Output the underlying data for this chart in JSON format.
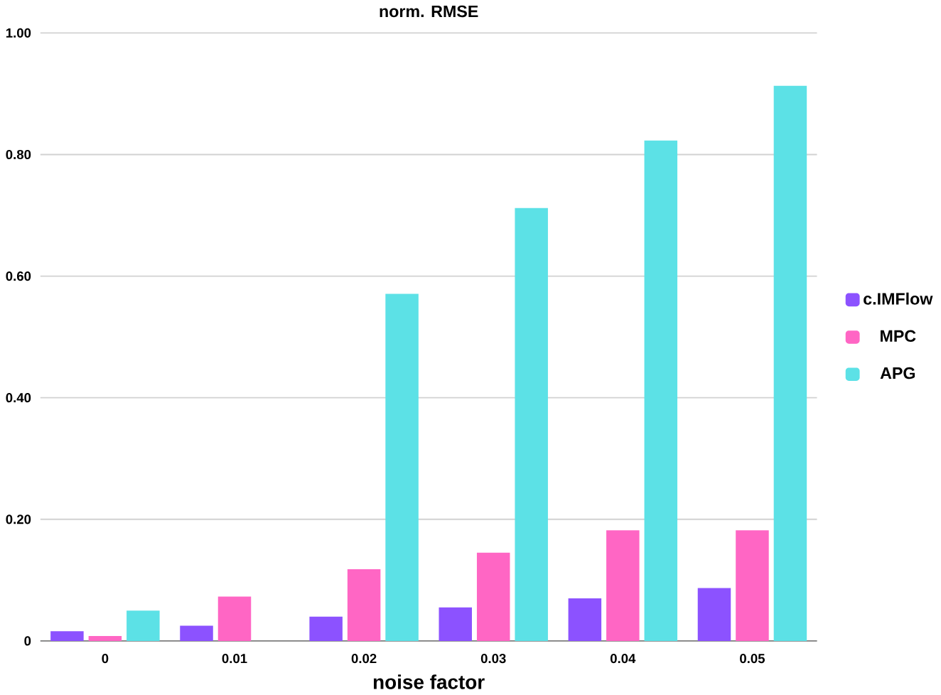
{
  "chart_data": {
    "type": "bar",
    "title": "norm. RMSE",
    "xlabel": "noise factor",
    "categories": [
      "0",
      "0.01",
      "0.02",
      "0.03",
      "0.04",
      "0.05"
    ],
    "series": [
      {
        "name": "c.IMFlow",
        "color": "#8c52ff",
        "values": [
          0.016,
          0.025,
          0.04,
          0.055,
          0.07,
          0.087
        ]
      },
      {
        "name": "MPC",
        "color": "#ff66c4",
        "values": [
          0.008,
          0.073,
          0.118,
          0.145,
          0.182,
          0.182
        ]
      },
      {
        "name": "APG",
        "color": "#5ce1e6",
        "values": [
          0.05,
          null,
          0.571,
          0.712,
          0.823,
          0.913
        ]
      }
    ],
    "ylim": [
      0,
      1
    ],
    "yticks": [
      0,
      {
        "value": 0.2,
        "label": "0.20"
      },
      {
        "value": 0.4,
        "label": "0.40"
      },
      {
        "value": 0.6,
        "label": "0.60"
      },
      {
        "value": 0.8,
        "label": "0.80"
      },
      {
        "value": 1,
        "label": "1.00"
      }
    ],
    "grid": "y",
    "legend": "right"
  }
}
